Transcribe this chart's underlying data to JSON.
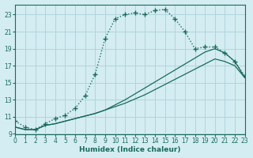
{
  "xlabel": "Humidex (Indice chaleur)",
  "bg_color": "#d4edf2",
  "grid_color": "#b0d4dc",
  "line_color": "#1a6b5a",
  "xlim": [
    0,
    23
  ],
  "ylim": [
    9,
    24.2
  ],
  "yticks": [
    9,
    11,
    13,
    15,
    17,
    19,
    21,
    23
  ],
  "xticks": [
    0,
    1,
    2,
    3,
    4,
    5,
    6,
    7,
    8,
    9,
    10,
    11,
    12,
    13,
    14,
    15,
    16,
    17,
    18,
    19,
    20,
    21,
    22,
    23
  ],
  "line1_x": [
    0,
    1,
    2,
    3,
    4,
    5,
    6,
    7,
    8,
    9,
    10,
    11,
    12,
    13,
    14,
    15,
    16,
    17,
    18,
    19,
    20,
    21,
    22,
    23
  ],
  "line1_y": [
    10.5,
    9.8,
    9.5,
    10.2,
    10.8,
    11.2,
    12.0,
    13.5,
    16.0,
    20.2,
    22.5,
    23.0,
    23.2,
    23.0,
    23.5,
    23.6,
    22.5,
    21.0,
    19.0,
    19.2,
    19.2,
    18.5,
    17.5,
    15.8
  ],
  "line2_x": [
    0,
    1,
    2,
    3,
    4,
    5,
    6,
    7,
    8,
    9,
    10,
    11,
    12,
    13,
    14,
    15,
    16,
    17,
    18,
    19,
    20,
    21,
    22,
    23
  ],
  "line2_y": [
    9.8,
    9.5,
    9.5,
    10.0,
    10.2,
    10.5,
    10.8,
    11.1,
    11.4,
    11.8,
    12.2,
    12.6,
    13.1,
    13.6,
    14.2,
    14.8,
    15.4,
    16.0,
    16.6,
    17.2,
    17.8,
    17.5,
    17.0,
    15.6
  ],
  "line3_x": [
    0,
    1,
    2,
    3,
    4,
    5,
    6,
    7,
    8,
    9,
    10,
    11,
    12,
    13,
    14,
    15,
    16,
    17,
    18,
    19,
    20,
    21,
    22,
    23
  ],
  "line3_y": [
    9.8,
    9.5,
    9.5,
    10.0,
    10.2,
    10.5,
    10.8,
    11.1,
    11.4,
    11.8,
    12.4,
    13.0,
    13.7,
    14.4,
    15.1,
    15.8,
    16.5,
    17.2,
    17.9,
    18.6,
    19.0,
    18.5,
    17.5,
    15.6
  ]
}
